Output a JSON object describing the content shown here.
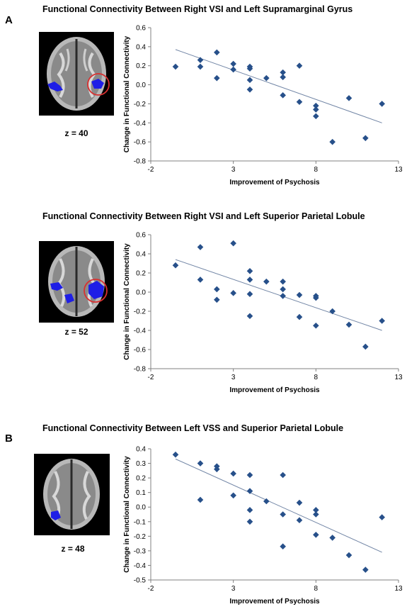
{
  "panel_labels": [
    "A",
    "B"
  ],
  "slices": [
    "z = 40",
    "z = 52",
    "z = 48"
  ],
  "chart_data": [
    {
      "type": "scatter",
      "title": "Functional Connectivity Between Right VSI and Left Supramarginal Gyrus",
      "xlabel": "Improvement of Psychosis",
      "ylabel": "Change in Functional Connectivity",
      "xlim": [
        -2,
        13
      ],
      "ylim": [
        -0.8,
        0.6
      ],
      "xticks": [
        -2,
        3,
        8,
        13
      ],
      "yticks": [
        0.6,
        0.4,
        0.2,
        0.0,
        -0.2,
        -0.4,
        -0.6,
        -0.8
      ],
      "ytick_labels": [
        "0.6",
        "0.4",
        "0.2",
        "0.0",
        "-0.2",
        "-0.4",
        "-0.6",
        "-0.8"
      ],
      "marker_color": "#27508a",
      "line_color": "#7185a5",
      "trendline": [
        [
          -0.5,
          0.37
        ],
        [
          12,
          -0.4
        ]
      ],
      "points": [
        [
          -0.5,
          0.19
        ],
        [
          1,
          0.26
        ],
        [
          1,
          0.19
        ],
        [
          2,
          0.34
        ],
        [
          2,
          0.07
        ],
        [
          3,
          0.22
        ],
        [
          3,
          0.16
        ],
        [
          4,
          0.19
        ],
        [
          4,
          0.17
        ],
        [
          4,
          0.05
        ],
        [
          4,
          -0.05
        ],
        [
          5,
          0.07
        ],
        [
          6,
          0.13
        ],
        [
          6,
          0.08
        ],
        [
          6,
          -0.11
        ],
        [
          7,
          0.2
        ],
        [
          7,
          -0.18
        ],
        [
          8,
          -0.22
        ],
        [
          8,
          -0.26
        ],
        [
          8,
          -0.33
        ],
        [
          9,
          -0.6
        ],
        [
          10,
          -0.14
        ],
        [
          11,
          -0.56
        ],
        [
          12,
          -0.2
        ]
      ]
    },
    {
      "type": "scatter",
      "title": "Functional Connectivity Between Right VSI and Left Superior Parietal Lobule",
      "xlabel": "Improvement of Psychosis",
      "ylabel": "Change in Functional Connectivity",
      "xlim": [
        -2,
        13
      ],
      "ylim": [
        -0.8,
        0.6
      ],
      "xticks": [
        -2,
        3,
        8,
        13
      ],
      "yticks": [
        0.6,
        0.4,
        0.2,
        0.0,
        -0.2,
        -0.4,
        -0.6,
        -0.8
      ],
      "ytick_labels": [
        "0.6",
        "0.4",
        "0.2",
        "0.0",
        "-0.2",
        "-0.4",
        "-0.6",
        "-0.8"
      ],
      "marker_color": "#27508a",
      "line_color": "#7185a5",
      "trendline": [
        [
          -0.5,
          0.34
        ],
        [
          12,
          -0.4
        ]
      ],
      "points": [
        [
          -0.5,
          0.28
        ],
        [
          1,
          0.47
        ],
        [
          1,
          0.13
        ],
        [
          2,
          0.03
        ],
        [
          2,
          -0.08
        ],
        [
          3,
          0.51
        ],
        [
          3,
          -0.01
        ],
        [
          4,
          0.22
        ],
        [
          4,
          0.13
        ],
        [
          4,
          -0.02
        ],
        [
          4,
          -0.25
        ],
        [
          5,
          0.11
        ],
        [
          6,
          0.11
        ],
        [
          6,
          0.03
        ],
        [
          6,
          -0.04
        ],
        [
          7,
          -0.03
        ],
        [
          7,
          -0.26
        ],
        [
          8,
          -0.04
        ],
        [
          8,
          -0.06
        ],
        [
          8,
          -0.35
        ],
        [
          9,
          -0.2
        ],
        [
          10,
          -0.34
        ],
        [
          11,
          -0.57
        ],
        [
          12,
          -0.3
        ]
      ]
    },
    {
      "type": "scatter",
      "title": "Functional Connectivity Between Left VSS and Superior Parietal Lobule",
      "xlabel": "Improvement of Psychosis",
      "ylabel": "Change in Functional Connectivity",
      "xlim": [
        -2,
        13
      ],
      "ylim": [
        -0.5,
        0.4
      ],
      "xticks": [
        -2,
        3,
        8,
        13
      ],
      "yticks": [
        0.4,
        0.3,
        0.2,
        0.1,
        0.0,
        -0.1,
        -0.2,
        -0.3,
        -0.4,
        -0.5
      ],
      "ytick_labels": [
        "0.4",
        "0.3",
        "0.2",
        "0.1",
        "0.0",
        "-0.1",
        "-0.2",
        "-0.3",
        "-0.4",
        "-0.5"
      ],
      "marker_color": "#27508a",
      "line_color": "#7185a5",
      "trendline": [
        [
          -0.5,
          0.33
        ],
        [
          12,
          -0.31
        ]
      ],
      "points": [
        [
          -0.5,
          0.36
        ],
        [
          1,
          0.3
        ],
        [
          1,
          0.05
        ],
        [
          2,
          0.28
        ],
        [
          2,
          0.26
        ],
        [
          3,
          0.23
        ],
        [
          3,
          0.08
        ],
        [
          4,
          0.22
        ],
        [
          4,
          0.11
        ],
        [
          4,
          -0.02
        ],
        [
          4,
          -0.1
        ],
        [
          5,
          0.04
        ],
        [
          6,
          0.22
        ],
        [
          6,
          -0.05
        ],
        [
          6,
          -0.27
        ],
        [
          7,
          0.03
        ],
        [
          7,
          -0.09
        ],
        [
          8,
          -0.02
        ],
        [
          8,
          -0.05
        ],
        [
          8,
          -0.19
        ],
        [
          9,
          -0.21
        ],
        [
          10,
          -0.33
        ],
        [
          11,
          -0.43
        ],
        [
          12,
          -0.07
        ]
      ]
    }
  ]
}
